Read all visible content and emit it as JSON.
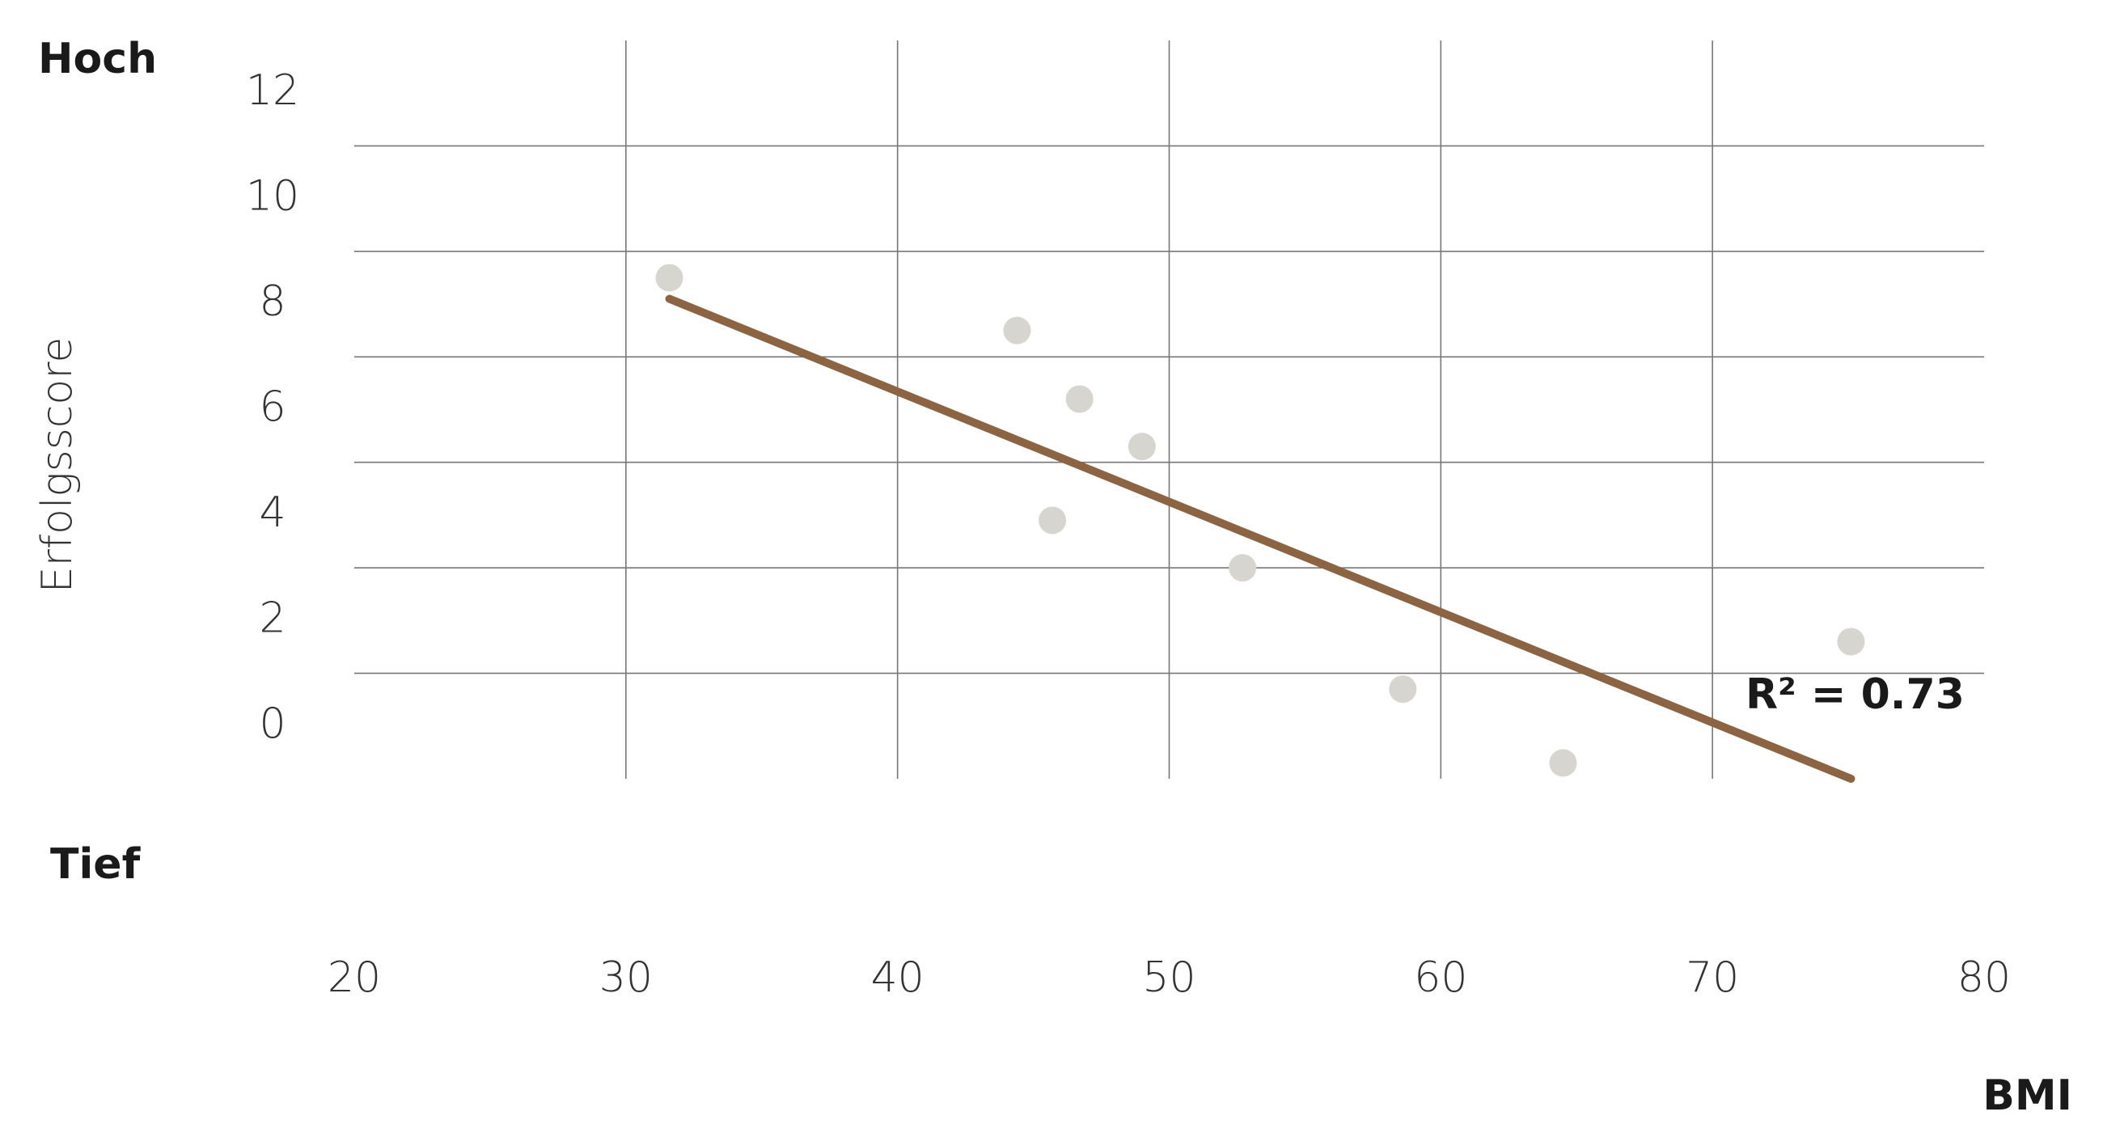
{
  "chart_data": {
    "type": "scatter",
    "y_label": "Erfolgsscore",
    "x_label": "BMI",
    "annotations": {
      "high": "Hoch",
      "low": "Tief",
      "r_squared": "R² = 0.73"
    },
    "x": [
      31.6,
      44.4,
      46.7,
      49.0,
      45.7,
      52.7,
      58.6,
      64.5,
      75.1
    ],
    "values": [
      8.5,
      7.5,
      6.2,
      5.3,
      3.9,
      3.0,
      0.7,
      -0.7,
      1.6
    ],
    "color": "#d6d5cf",
    "trendline": {
      "x": [
        31.6,
        75.1
      ],
      "values": [
        8.1,
        -1.0
      ],
      "color": "#8b6543"
    },
    "xlim": [
      20,
      80
    ],
    "xticks": [
      20,
      30,
      40,
      50,
      60,
      70,
      80
    ],
    "ylim": [
      -1,
      13
    ],
    "yticks": [
      0,
      2,
      4,
      6,
      8,
      10,
      12
    ],
    "ygrid": [
      1,
      3,
      5,
      7,
      9,
      11
    ],
    "grid": true
  }
}
